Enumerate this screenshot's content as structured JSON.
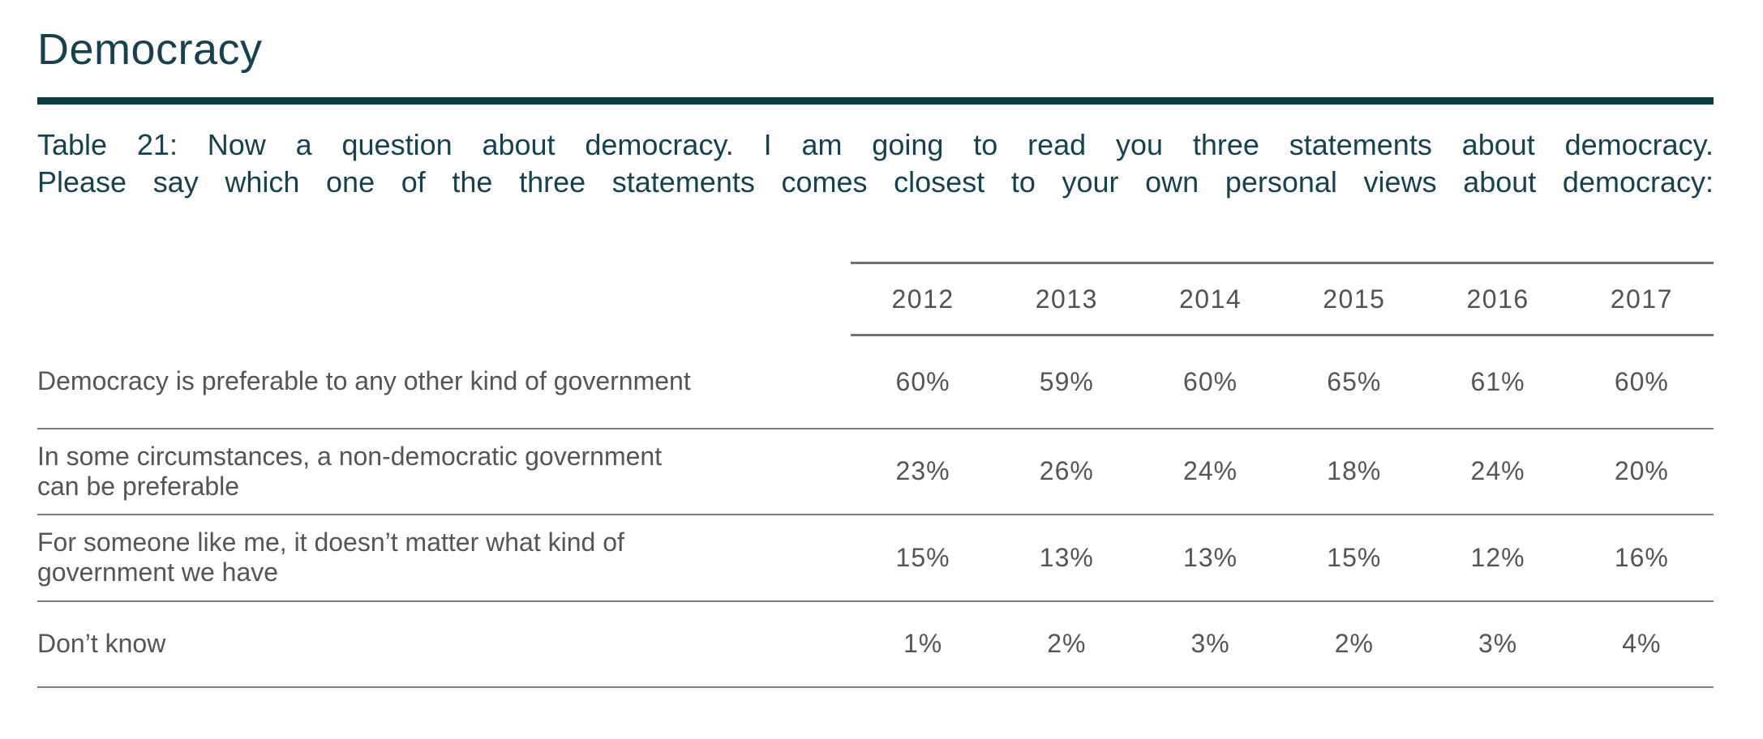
{
  "page": {
    "title": "Democracy",
    "background": "#ffffff"
  },
  "colors": {
    "heading_teal": "#15424f",
    "rule_teal": "#0d3a47",
    "table_text_gray": "#54555a",
    "header_line_gray": "#6f7073",
    "row_line_gray": "#7c7d80"
  },
  "chart_data": {
    "type": "table",
    "title": "Democracy",
    "caption": "Table 21: Now a question about democracy. I am going to read you three statements about democracy. Please say which one of the three statements comes closest to your own personal views about democracy:",
    "caption_lines": [
      "Table 21: Now a question about democracy. I am going to read you three statements about democracy.",
      "Please say which one of the three statements comes closest to your own personal views about democracy:"
    ],
    "columns": [
      "2012",
      "2013",
      "2014",
      "2015",
      "2016",
      "2017"
    ],
    "rows": [
      {
        "label": "Democracy is preferable to any other kind of government",
        "label_lines": [
          "Democracy is preferable to any other kind of government"
        ],
        "values": [
          "60%",
          "59%",
          "60%",
          "65%",
          "61%",
          "60%"
        ]
      },
      {
        "label": "In some circumstances, a non-democratic government can be preferable",
        "label_lines": [
          "In some circumstances, a non-democratic government",
          "can be preferable"
        ],
        "values": [
          "23%",
          "26%",
          "24%",
          "18%",
          "24%",
          "20%"
        ]
      },
      {
        "label": "For someone like me, it doesn’t matter what kind of government we have",
        "label_lines": [
          "For someone like me, it doesn’t matter what kind of",
          "government we have"
        ],
        "values": [
          "15%",
          "13%",
          "13%",
          "15%",
          "12%",
          "16%"
        ]
      },
      {
        "label": "Don’t know",
        "label_lines": [
          "Don’t know"
        ],
        "values": [
          "1%",
          "2%",
          "3%",
          "2%",
          "3%",
          "4%"
        ]
      }
    ]
  }
}
